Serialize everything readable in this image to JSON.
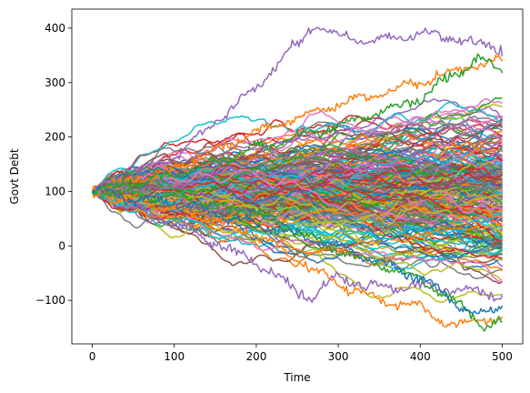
{
  "chart_data": {
    "type": "line",
    "title": "",
    "xlabel": "Time",
    "ylabel": "Govt Debt",
    "xlim": [
      -25,
      525
    ],
    "ylim": [
      -180,
      435
    ],
    "x_ticks": [
      0,
      100,
      200,
      300,
      400,
      500
    ],
    "y_ticks": [
      -100,
      0,
      100,
      200,
      300,
      400
    ],
    "grid": false,
    "legend": "none",
    "n_series_approx": 250,
    "start_value": 100,
    "n_steps": 500,
    "palette": [
      "#1f77b4",
      "#ff7f0e",
      "#2ca02c",
      "#d62728",
      "#9467bd",
      "#8c564b",
      "#e377c2",
      "#7f7f7f",
      "#bcbd22",
      "#17becf"
    ],
    "highlighted_series": [
      {
        "name": "",
        "color": "#9467bd",
        "values_at": {
          "0": 100,
          "100": 165,
          "200": 290,
          "270": 405,
          "300": 385,
          "350": 375,
          "400": 390,
          "450": 380,
          "500": 362
        }
      },
      {
        "name": "",
        "color": "#9467bd",
        "values_at": {
          "0": 100,
          "100": 40,
          "200": -30,
          "265": -97,
          "300": -55,
          "350": -80,
          "400": -72,
          "450": -80,
          "500": -92
        }
      },
      {
        "name": "",
        "color": "#ff7f0e",
        "values_at": {
          "0": 100,
          "100": 70,
          "200": 20,
          "300": -70,
          "350": -100,
          "400": -110,
          "440": -150,
          "470": -135,
          "500": -133
        }
      },
      {
        "name": "",
        "color": "#2ca02c",
        "values_at": {
          "0": 100,
          "100": 90,
          "200": 60,
          "300": -10,
          "400": -60,
          "450": -110,
          "480": -150,
          "500": -140
        }
      },
      {
        "name": "",
        "color": "#ff7f0e",
        "values_at": {
          "0": 100,
          "100": 140,
          "200": 210,
          "300": 260,
          "400": 300,
          "460": 330,
          "500": 338
        }
      },
      {
        "name": "",
        "color": "#2ca02c",
        "values_at": {
          "0": 100,
          "100": 130,
          "200": 180,
          "300": 220,
          "400": 270,
          "470": 345,
          "500": 320
        }
      },
      {
        "name": "",
        "color": "#1f77b4",
        "values_at": {
          "0": 100,
          "100": 80,
          "200": 40,
          "300": 0,
          "400": -60,
          "470": -130,
          "500": -105
        }
      }
    ]
  }
}
